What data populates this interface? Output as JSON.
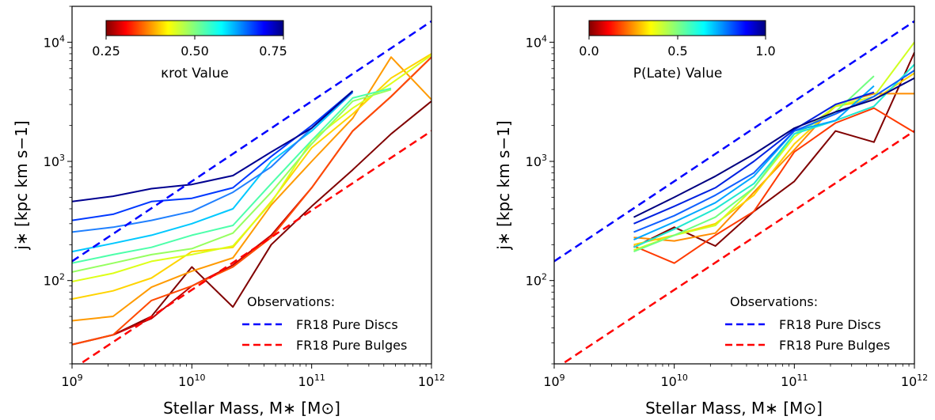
{
  "chart_data": [
    {
      "type": "line",
      "xlabel": "Stellar Mass, M∗ [M⊙]",
      "ylabel": "j∗ [kpc km s−1]",
      "xscale": "log",
      "yscale": "log",
      "xlim": [
        1000000000.0,
        1000000000000.0
      ],
      "ylim": [
        20,
        20000
      ],
      "xticks": [
        {
          "value": 1000000000.0,
          "base": "10",
          "exp": "9"
        },
        {
          "value": 10000000000.0,
          "base": "10",
          "exp": "10"
        },
        {
          "value": 100000000000.0,
          "base": "10",
          "exp": "11"
        },
        {
          "value": 1000000000000.0,
          "base": "10",
          "exp": "12"
        }
      ],
      "yticks": [
        {
          "value": 100,
          "base": "10",
          "exp": "2"
        },
        {
          "value": 1000,
          "base": "10",
          "exp": "3"
        },
        {
          "value": 10000,
          "base": "10",
          "exp": "4"
        }
      ],
      "colorbar": {
        "label": "κrot Value",
        "colormap": "jet_r",
        "range": [
          0.25,
          0.75
        ],
        "ticks": [
          "0.25",
          "0.50",
          "0.75"
        ]
      },
      "legend": {
        "title": "Observations:",
        "position": "bottom-right",
        "entries": [
          {
            "label": "FR18 Pure Discs",
            "color": "#0000ff",
            "style": "dashed"
          },
          {
            "label": "FR18 Pure Bulges",
            "color": "#ff0000",
            "style": "dashed"
          }
        ]
      },
      "reference_lines": [
        {
          "name": "FR18 Pure Discs",
          "color": "#0000ff",
          "x": [
            1000000000.0,
            1000000000000.0
          ],
          "y": [
            145,
            15000
          ]
        },
        {
          "name": "FR18 Pure Bulges",
          "color": "#ff0000",
          "x": [
            1000000000.0,
            1000000000000.0
          ],
          "y": [
            18,
            1800
          ]
        }
      ],
      "series": [
        {
          "color": "#800000",
          "x": [
            1000000000.0,
            2200000000.0,
            4600000000.0,
            10000000000.0,
            22000000000.0,
            46000000000.0,
            100000000000.0,
            220000000000.0,
            460000000000.0,
            1000000000000.0
          ],
          "y": [
            29,
            35,
            50,
            130,
            60,
            200,
            420,
            850,
            1700,
            3200
          ]
        },
        {
          "color": "#c40000",
          "x": [
            1000000000.0,
            2200000000.0,
            4600000000.0,
            10000000000.0,
            22000000000.0,
            46000000000.0,
            100000000000.0,
            220000000000.0,
            460000000000.0,
            1000000000000.0
          ],
          "y": [
            29,
            35,
            48,
            90,
            135,
            240,
            600,
            1800,
            3500,
            7500
          ]
        },
        {
          "color": "#ff4a00",
          "x": [
            1000000000.0,
            2200000000.0,
            4600000000.0,
            10000000000.0,
            22000000000.0,
            46000000000.0,
            100000000000.0,
            220000000000.0,
            460000000000.0,
            1000000000000.0
          ],
          "y": [
            29,
            35,
            68,
            90,
            130,
            230,
            600,
            1800,
            3500,
            7500
          ]
        },
        {
          "color": "#ff9a00",
          "x": [
            1000000000.0,
            2200000000.0,
            4600000000.0,
            10000000000.0,
            22000000000.0,
            46000000000.0,
            100000000000.0,
            220000000000.0,
            460000000000.0,
            1000000000000.0
          ],
          "y": [
            46,
            50,
            88,
            120,
            155,
            430,
            1000,
            2300,
            7500,
            3300
          ]
        },
        {
          "color": "#ffd400",
          "x": [
            1000000000.0,
            2200000000.0,
            4600000000.0,
            10000000000.0,
            22000000000.0,
            46000000000.0,
            100000000000.0,
            220000000000.0,
            460000000000.0,
            1000000000000.0
          ],
          "y": [
            70,
            82,
            105,
            175,
            190,
            460,
            1300,
            2500,
            5000,
            8000
          ]
        },
        {
          "color": "#ddff18",
          "x": [
            1000000000.0,
            2200000000.0,
            4600000000.0,
            10000000000.0,
            22000000000.0,
            46000000000.0,
            100000000000.0,
            220000000000.0,
            460000000000.0,
            1000000000000.0
          ],
          "y": [
            98,
            115,
            145,
            165,
            195,
            450,
            1500,
            2800,
            4500,
            7800
          ]
        },
        {
          "color": "#96ff60",
          "x": [
            1000000000.0,
            2200000000.0,
            4600000000.0,
            10000000000.0,
            22000000000.0,
            46000000000.0,
            100000000000.0,
            220000000000.0,
            460000000000.0
          ],
          "y": [
            118,
            140,
            165,
            185,
            250,
            550,
            1400,
            3200,
            4000
          ]
        },
        {
          "color": "#4dffaa",
          "x": [
            1000000000.0,
            2200000000.0,
            4600000000.0,
            10000000000.0,
            22000000000.0,
            46000000000.0,
            100000000000.0,
            220000000000.0,
            460000000000.0
          ],
          "y": [
            140,
            165,
            190,
            240,
            290,
            650,
            1500,
            3400,
            4100
          ]
        },
        {
          "color": "#00c8ff",
          "x": [
            1000000000.0,
            2200000000.0,
            4600000000.0,
            10000000000.0,
            22000000000.0,
            46000000000.0,
            100000000000.0,
            220000000000.0
          ],
          "y": [
            175,
            205,
            240,
            300,
            400,
            1000,
            1800,
            3800
          ]
        },
        {
          "color": "#2080ff",
          "x": [
            1000000000.0,
            2200000000.0,
            4600000000.0,
            10000000000.0,
            22000000000.0,
            46000000000.0,
            100000000000.0,
            220000000000.0
          ],
          "y": [
            255,
            280,
            320,
            380,
            550,
            900,
            1900,
            3800
          ]
        },
        {
          "color": "#0038ff",
          "x": [
            1000000000.0,
            2200000000.0,
            4600000000.0,
            10000000000.0,
            22000000000.0,
            46000000000.0,
            100000000000.0,
            220000000000.0
          ],
          "y": [
            320,
            360,
            460,
            490,
            600,
            1100,
            2000,
            3900
          ]
        },
        {
          "color": "#000090",
          "x": [
            1000000000.0,
            2200000000.0,
            4600000000.0,
            10000000000.0,
            22000000000.0,
            46000000000.0,
            100000000000.0,
            220000000000.0
          ],
          "y": [
            460,
            510,
            590,
            640,
            760,
            1200,
            1900,
            3900
          ]
        }
      ]
    },
    {
      "type": "line",
      "xlabel": "Stellar Mass, M∗ [M⊙]",
      "ylabel": "j∗ [kpc km s−1]",
      "xscale": "log",
      "yscale": "log",
      "xlim": [
        1000000000.0,
        1000000000000.0
      ],
      "ylim": [
        20,
        20000
      ],
      "xticks": [
        {
          "value": 1000000000.0,
          "base": "10",
          "exp": "9"
        },
        {
          "value": 10000000000.0,
          "base": "10",
          "exp": "10"
        },
        {
          "value": 100000000000.0,
          "base": "10",
          "exp": "11"
        },
        {
          "value": 1000000000000.0,
          "base": "10",
          "exp": "12"
        }
      ],
      "yticks": [
        {
          "value": 100,
          "base": "10",
          "exp": "2"
        },
        {
          "value": 1000,
          "base": "10",
          "exp": "3"
        },
        {
          "value": 10000,
          "base": "10",
          "exp": "4"
        }
      ],
      "colorbar": {
        "label": "P(Late) Value",
        "colormap": "jet_r",
        "range": [
          0.0,
          1.0
        ],
        "ticks": [
          "0.0",
          "0.5",
          "1.0"
        ]
      },
      "legend": {
        "title": "Observations:",
        "position": "bottom-right",
        "entries": [
          {
            "label": "FR18 Pure Discs",
            "color": "#0000ff",
            "style": "dashed"
          },
          {
            "label": "FR18 Pure Bulges",
            "color": "#ff0000",
            "style": "dashed"
          }
        ]
      },
      "reference_lines": [
        {
          "name": "FR18 Pure Discs",
          "color": "#0000ff",
          "x": [
            1000000000.0,
            1000000000000.0
          ],
          "y": [
            145,
            15000
          ]
        },
        {
          "name": "FR18 Pure Bulges",
          "color": "#ff0000",
          "x": [
            1000000000.0,
            1000000000000.0
          ],
          "y": [
            18,
            1800
          ]
        }
      ],
      "series": [
        {
          "color": "#800000",
          "x": [
            4600000000.0,
            10000000000.0,
            22000000000.0,
            46000000000.0,
            100000000000.0,
            220000000000.0,
            460000000000.0,
            1000000000000.0
          ],
          "y": [
            190,
            280,
            195,
            380,
            680,
            1800,
            1450,
            8200
          ]
        },
        {
          "color": "#ff3a00",
          "x": [
            4600000000.0,
            10000000000.0,
            22000000000.0,
            46000000000.0,
            100000000000.0,
            220000000000.0,
            460000000000.0,
            1000000000000.0
          ],
          "y": [
            195,
            140,
            240,
            380,
            1200,
            2100,
            2800,
            1750
          ]
        },
        {
          "color": "#ff8c00",
          "x": [
            4600000000.0,
            10000000000.0,
            22000000000.0,
            46000000000.0,
            100000000000.0,
            220000000000.0,
            460000000000.0,
            1000000000000.0
          ],
          "y": [
            230,
            215,
            250,
            550,
            1250,
            3000,
            3700,
            3700
          ]
        },
        {
          "color": "#ffd000",
          "x": [
            4600000000.0,
            10000000000.0,
            22000000000.0,
            46000000000.0,
            100000000000.0,
            220000000000.0,
            460000000000.0,
            1000000000000.0
          ],
          "y": [
            200,
            240,
            300,
            520,
            1400,
            2900,
            3300,
            5500
          ]
        },
        {
          "color": "#d0ff20",
          "x": [
            4600000000.0,
            10000000000.0,
            22000000000.0,
            46000000000.0,
            100000000000.0,
            220000000000.0,
            460000000000.0,
            1000000000000.0
          ],
          "y": [
            180,
            240,
            290,
            600,
            1600,
            2900,
            3500,
            10000
          ]
        },
        {
          "color": "#70ff80",
          "x": [
            4600000000.0,
            10000000000.0,
            22000000000.0,
            46000000000.0,
            100000000000.0,
            220000000000.0,
            460000000000.0
          ],
          "y": [
            175,
            240,
            340,
            600,
            1700,
            2600,
            5200
          ]
        },
        {
          "color": "#20e8d0",
          "x": [
            4600000000.0,
            10000000000.0,
            22000000000.0,
            46000000000.0,
            100000000000.0,
            220000000000.0,
            460000000000.0,
            1000000000000.0
          ],
          "y": [
            190,
            270,
            400,
            650,
            1700,
            2200,
            2900,
            6500
          ]
        },
        {
          "color": "#00a8ff",
          "x": [
            4600000000.0,
            10000000000.0,
            22000000000.0,
            46000000000.0,
            100000000000.0,
            220000000000.0,
            460000000000.0
          ],
          "y": [
            220,
            310,
            450,
            750,
            1800,
            2200,
            4300
          ]
        },
        {
          "color": "#1060ff",
          "x": [
            4600000000.0,
            10000000000.0,
            22000000000.0,
            46000000000.0,
            100000000000.0,
            220000000000.0,
            460000000000.0,
            1000000000000.0
          ],
          "y": [
            255,
            350,
            520,
            800,
            1800,
            2500,
            3500,
            5800
          ]
        },
        {
          "color": "#0020e0",
          "x": [
            4600000000.0,
            10000000000.0,
            22000000000.0,
            46000000000.0,
            100000000000.0,
            220000000000.0,
            460000000000.0
          ],
          "y": [
            300,
            420,
            600,
            1000,
            1850,
            3000,
            3800
          ]
        },
        {
          "color": "#000080",
          "x": [
            4600000000.0,
            10000000000.0,
            22000000000.0,
            46000000000.0,
            100000000000.0,
            220000000000.0,
            460000000000.0,
            1000000000000.0
          ],
          "y": [
            340,
            500,
            750,
            1150,
            1900,
            2600,
            3300,
            5000
          ]
        }
      ]
    }
  ]
}
